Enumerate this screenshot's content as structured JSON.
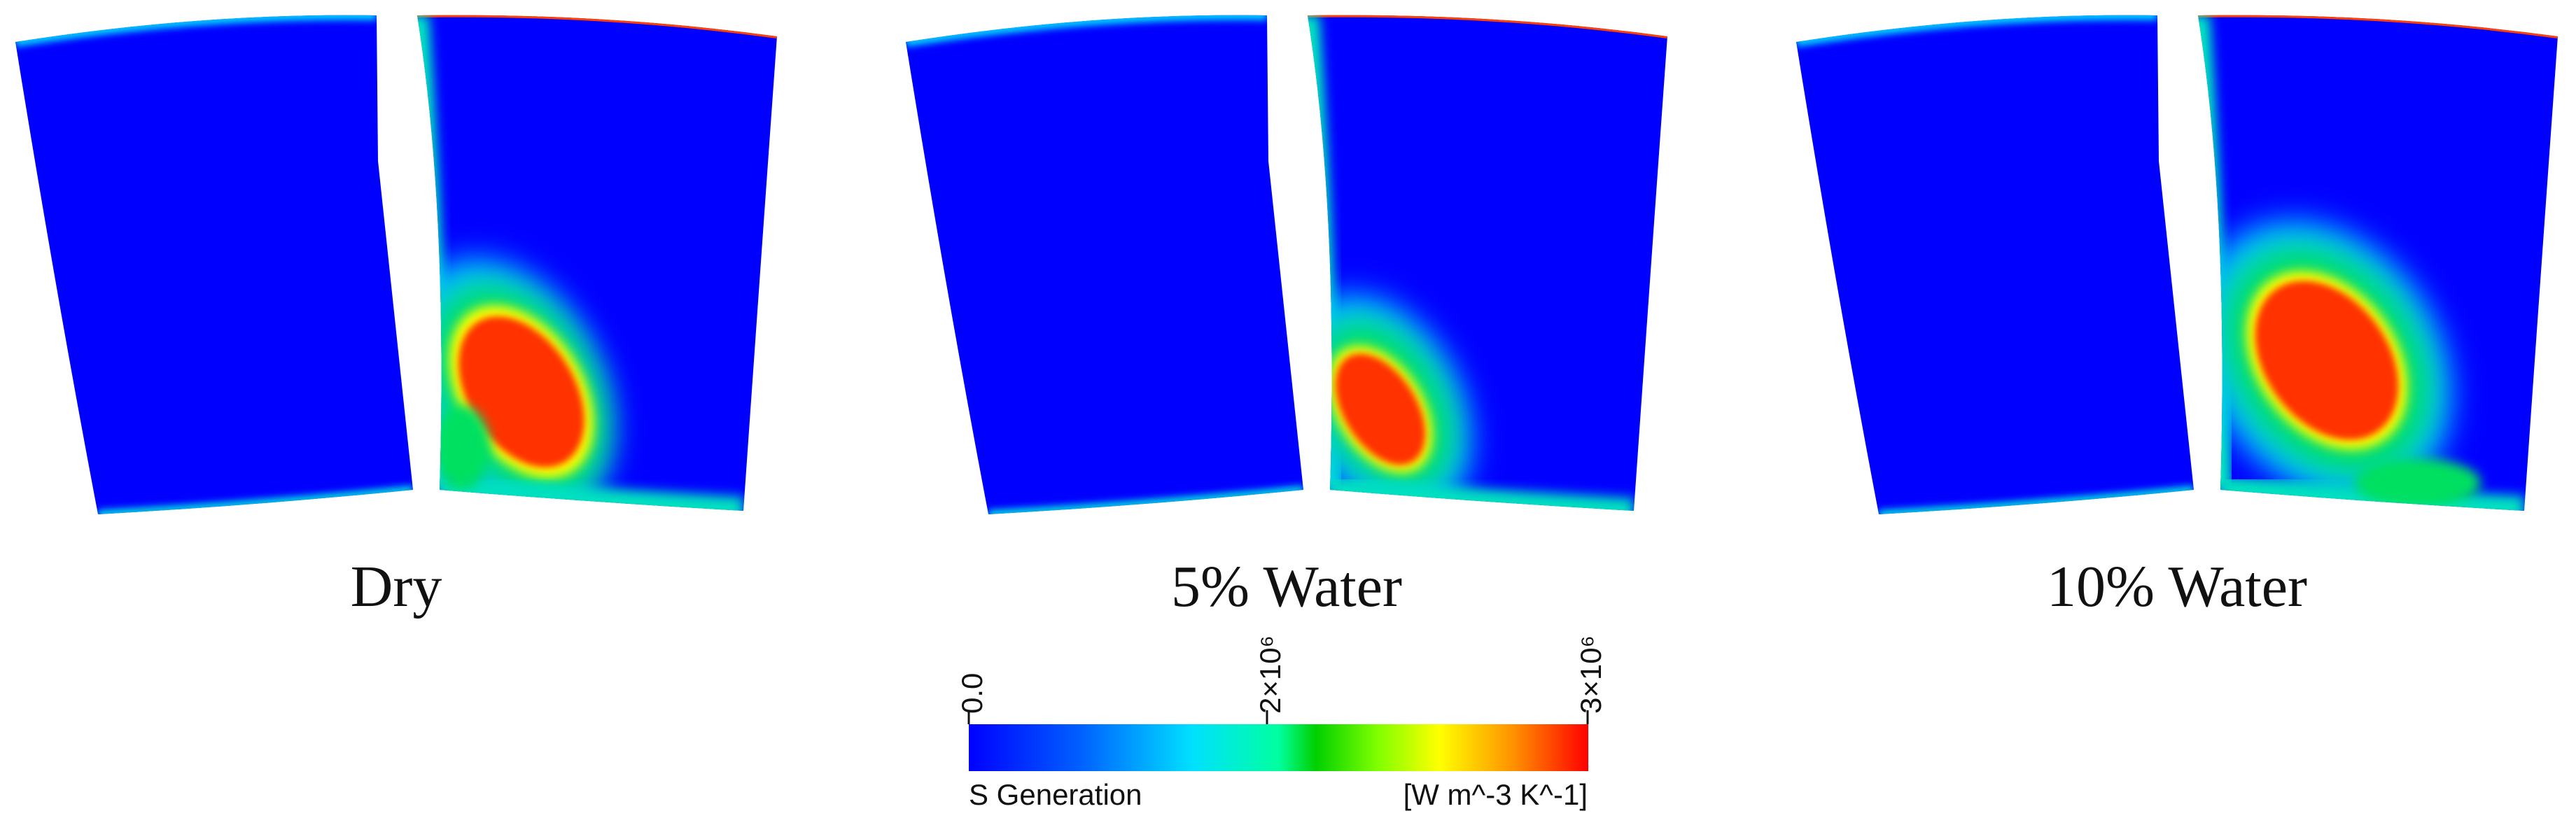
{
  "panels": [
    {
      "label": "Dry"
    },
    {
      "label": "5% Water"
    },
    {
      "label": "10% Water"
    }
  ],
  "colorbar": {
    "title": "S Generation",
    "units": "[W m^-3 K^-1]",
    "ticks": [
      {
        "value": 0,
        "label": "0.0"
      },
      {
        "value": 2000000,
        "label": "2×10⁶"
      },
      {
        "value": 3000000,
        "label": "3×10⁶"
      }
    ],
    "range": [
      0,
      3000000
    ],
    "colors": [
      "#0000ff",
      "#00c0ff",
      "#00ffb0",
      "#00e000",
      "#ffff00",
      "#ff9000",
      "#ff0000"
    ]
  }
}
